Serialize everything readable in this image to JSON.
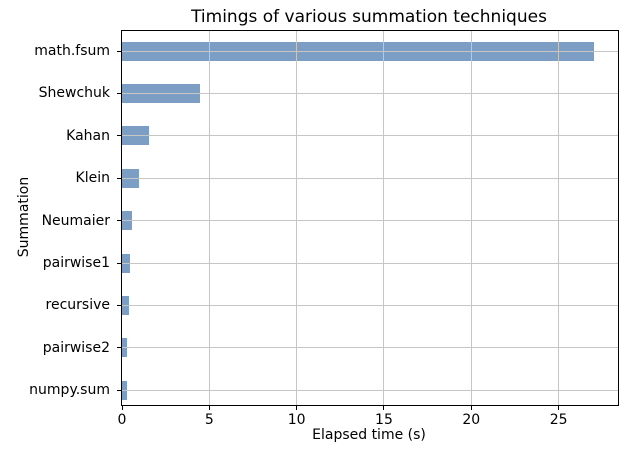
{
  "chart_data": {
    "type": "bar",
    "orientation": "horizontal",
    "title": "Timings of various summation techniques",
    "xlabel": "Elapsed time (s)",
    "ylabel": "Summation",
    "categories": [
      "math.fsum",
      "Shewchuk",
      "Kahan",
      "Klein",
      "Neumaier",
      "pairwise1",
      "recursive",
      "pairwise2",
      "numpy.sum"
    ],
    "values": [
      27.0,
      4.45,
      1.55,
      1.0,
      0.6,
      0.46,
      0.42,
      0.3,
      0.26
    ],
    "xticks": [
      0,
      5,
      10,
      15,
      20,
      25
    ],
    "xlim": [
      0,
      28.4
    ],
    "grid": true,
    "legend": false,
    "bar_color": "#7c9dc4",
    "grid_color": "#c6c6c6",
    "axis_color": "#000000",
    "background_color": "#ffffff"
  }
}
